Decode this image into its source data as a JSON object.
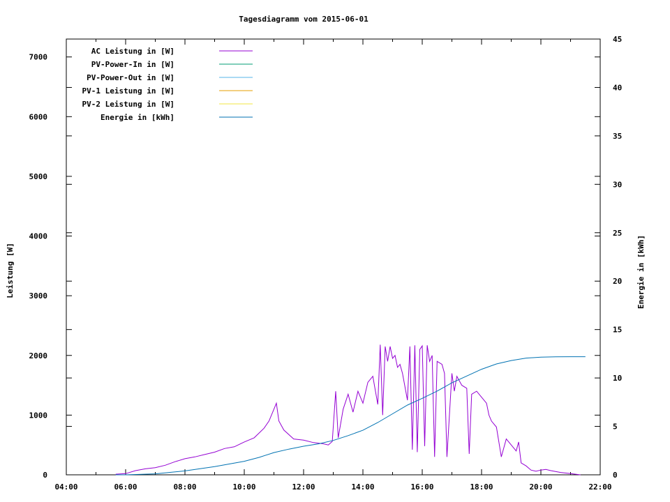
{
  "chart_data": {
    "type": "line",
    "title": "Tagesdiagramm vom 2015-06-01",
    "xlabel": "",
    "ylabel": "Leistung [W]",
    "y2label": "Energie in [kWh]",
    "xlim": [
      "04:00",
      "22:00"
    ],
    "ylim": [
      0,
      7300
    ],
    "y2lim": [
      0,
      45
    ],
    "x_ticks": [
      "04:00",
      "06:00",
      "08:00",
      "10:00",
      "12:00",
      "14:00",
      "16:00",
      "18:00",
      "20:00",
      "22:00"
    ],
    "y_ticks": [
      "0",
      "1000",
      "2000",
      "3000",
      "4000",
      "5000",
      "6000",
      "7000"
    ],
    "y2_ticks": [
      "0",
      "5",
      "10",
      "15",
      "20",
      "25",
      "30",
      "35",
      "40",
      "45"
    ],
    "grid": false,
    "legend_position": "top-left",
    "series": [
      {
        "name": "AC Leistung in [W]",
        "color": "#9400d3",
        "axis": "left",
        "x": [
          "05:40",
          "06:00",
          "06:20",
          "06:40",
          "07:00",
          "07:20",
          "07:40",
          "08:00",
          "08:20",
          "08:40",
          "09:00",
          "09:20",
          "09:40",
          "10:00",
          "10:20",
          "10:40",
          "10:50",
          "11:00",
          "11:05",
          "11:10",
          "11:20",
          "11:40",
          "12:00",
          "12:20",
          "12:40",
          "12:50",
          "12:58",
          "13:05",
          "13:10",
          "13:20",
          "13:30",
          "13:40",
          "13:50",
          "14:00",
          "14:10",
          "14:20",
          "14:30",
          "14:35",
          "14:40",
          "14:45",
          "14:50",
          "14:55",
          "15:00",
          "15:05",
          "15:10",
          "15:15",
          "15:20",
          "15:30",
          "15:35",
          "15:40",
          "15:45",
          "15:50",
          "15:55",
          "16:00",
          "16:05",
          "16:10",
          "16:15",
          "16:20",
          "16:25",
          "16:30",
          "16:40",
          "16:45",
          "16:50",
          "17:00",
          "17:05",
          "17:10",
          "17:20",
          "17:30",
          "17:35",
          "17:40",
          "17:50",
          "18:00",
          "18:10",
          "18:15",
          "18:20",
          "18:30",
          "18:40",
          "18:50",
          "19:00",
          "19:10",
          "19:15",
          "19:20",
          "19:30",
          "19:40",
          "19:50",
          "20:00",
          "20:10",
          "20:20",
          "20:40",
          "21:00",
          "21:20"
        ],
        "values": [
          10,
          20,
          70,
          100,
          120,
          160,
          220,
          270,
          300,
          340,
          380,
          440,
          470,
          550,
          620,
          780,
          900,
          1100,
          1200,
          900,
          750,
          600,
          580,
          540,
          520,
          500,
          560,
          1400,
          620,
          1100,
          1350,
          1050,
          1400,
          1200,
          1550,
          1650,
          1180,
          2180,
          1000,
          2150,
          1900,
          2150,
          1950,
          2000,
          1800,
          1850,
          1700,
          1250,
          2150,
          420,
          2170,
          380,
          2100,
          2160,
          480,
          2170,
          1900,
          2000,
          300,
          1900,
          1850,
          1700,
          300,
          1700,
          1400,
          1650,
          1500,
          1450,
          350,
          1350,
          1400,
          1300,
          1200,
          1000,
          900,
          800,
          300,
          600,
          500,
          400,
          550,
          200,
          150,
          80,
          60,
          80,
          90,
          70,
          40,
          20,
          0
        ]
      },
      {
        "name": "PV-Power-In in [W]",
        "color": "#009e73",
        "axis": "left",
        "x": [],
        "values": []
      },
      {
        "name": "PV-Power-Out in [W]",
        "color": "#56b4e9",
        "axis": "left",
        "x": [],
        "values": []
      },
      {
        "name": "PV-1 Leistung in [W]",
        "color": "#e69f00",
        "axis": "left",
        "x": [],
        "values": []
      },
      {
        "name": "PV-2 Leistung in [W]",
        "color": "#f0e442",
        "axis": "left",
        "x": [],
        "values": []
      },
      {
        "name": "Energie in [kWh]",
        "color": "#0072b2",
        "axis": "right",
        "x": [
          "05:40",
          "06:00",
          "07:00",
          "08:00",
          "09:00",
          "10:00",
          "10:30",
          "11:00",
          "11:30",
          "12:00",
          "12:30",
          "13:00",
          "13:30",
          "14:00",
          "14:30",
          "15:00",
          "15:30",
          "16:00",
          "16:30",
          "17:00",
          "17:30",
          "18:00",
          "18:30",
          "19:00",
          "19:30",
          "20:00",
          "20:30",
          "21:00",
          "21:30"
        ],
        "values": [
          0,
          0,
          0.1,
          0.4,
          0.85,
          1.4,
          1.8,
          2.3,
          2.65,
          2.95,
          3.2,
          3.55,
          4.05,
          4.6,
          5.4,
          6.3,
          7.2,
          7.9,
          8.65,
          9.5,
          10.2,
          10.9,
          11.45,
          11.8,
          12.05,
          12.15,
          12.18,
          12.2,
          12.2
        ]
      }
    ]
  }
}
